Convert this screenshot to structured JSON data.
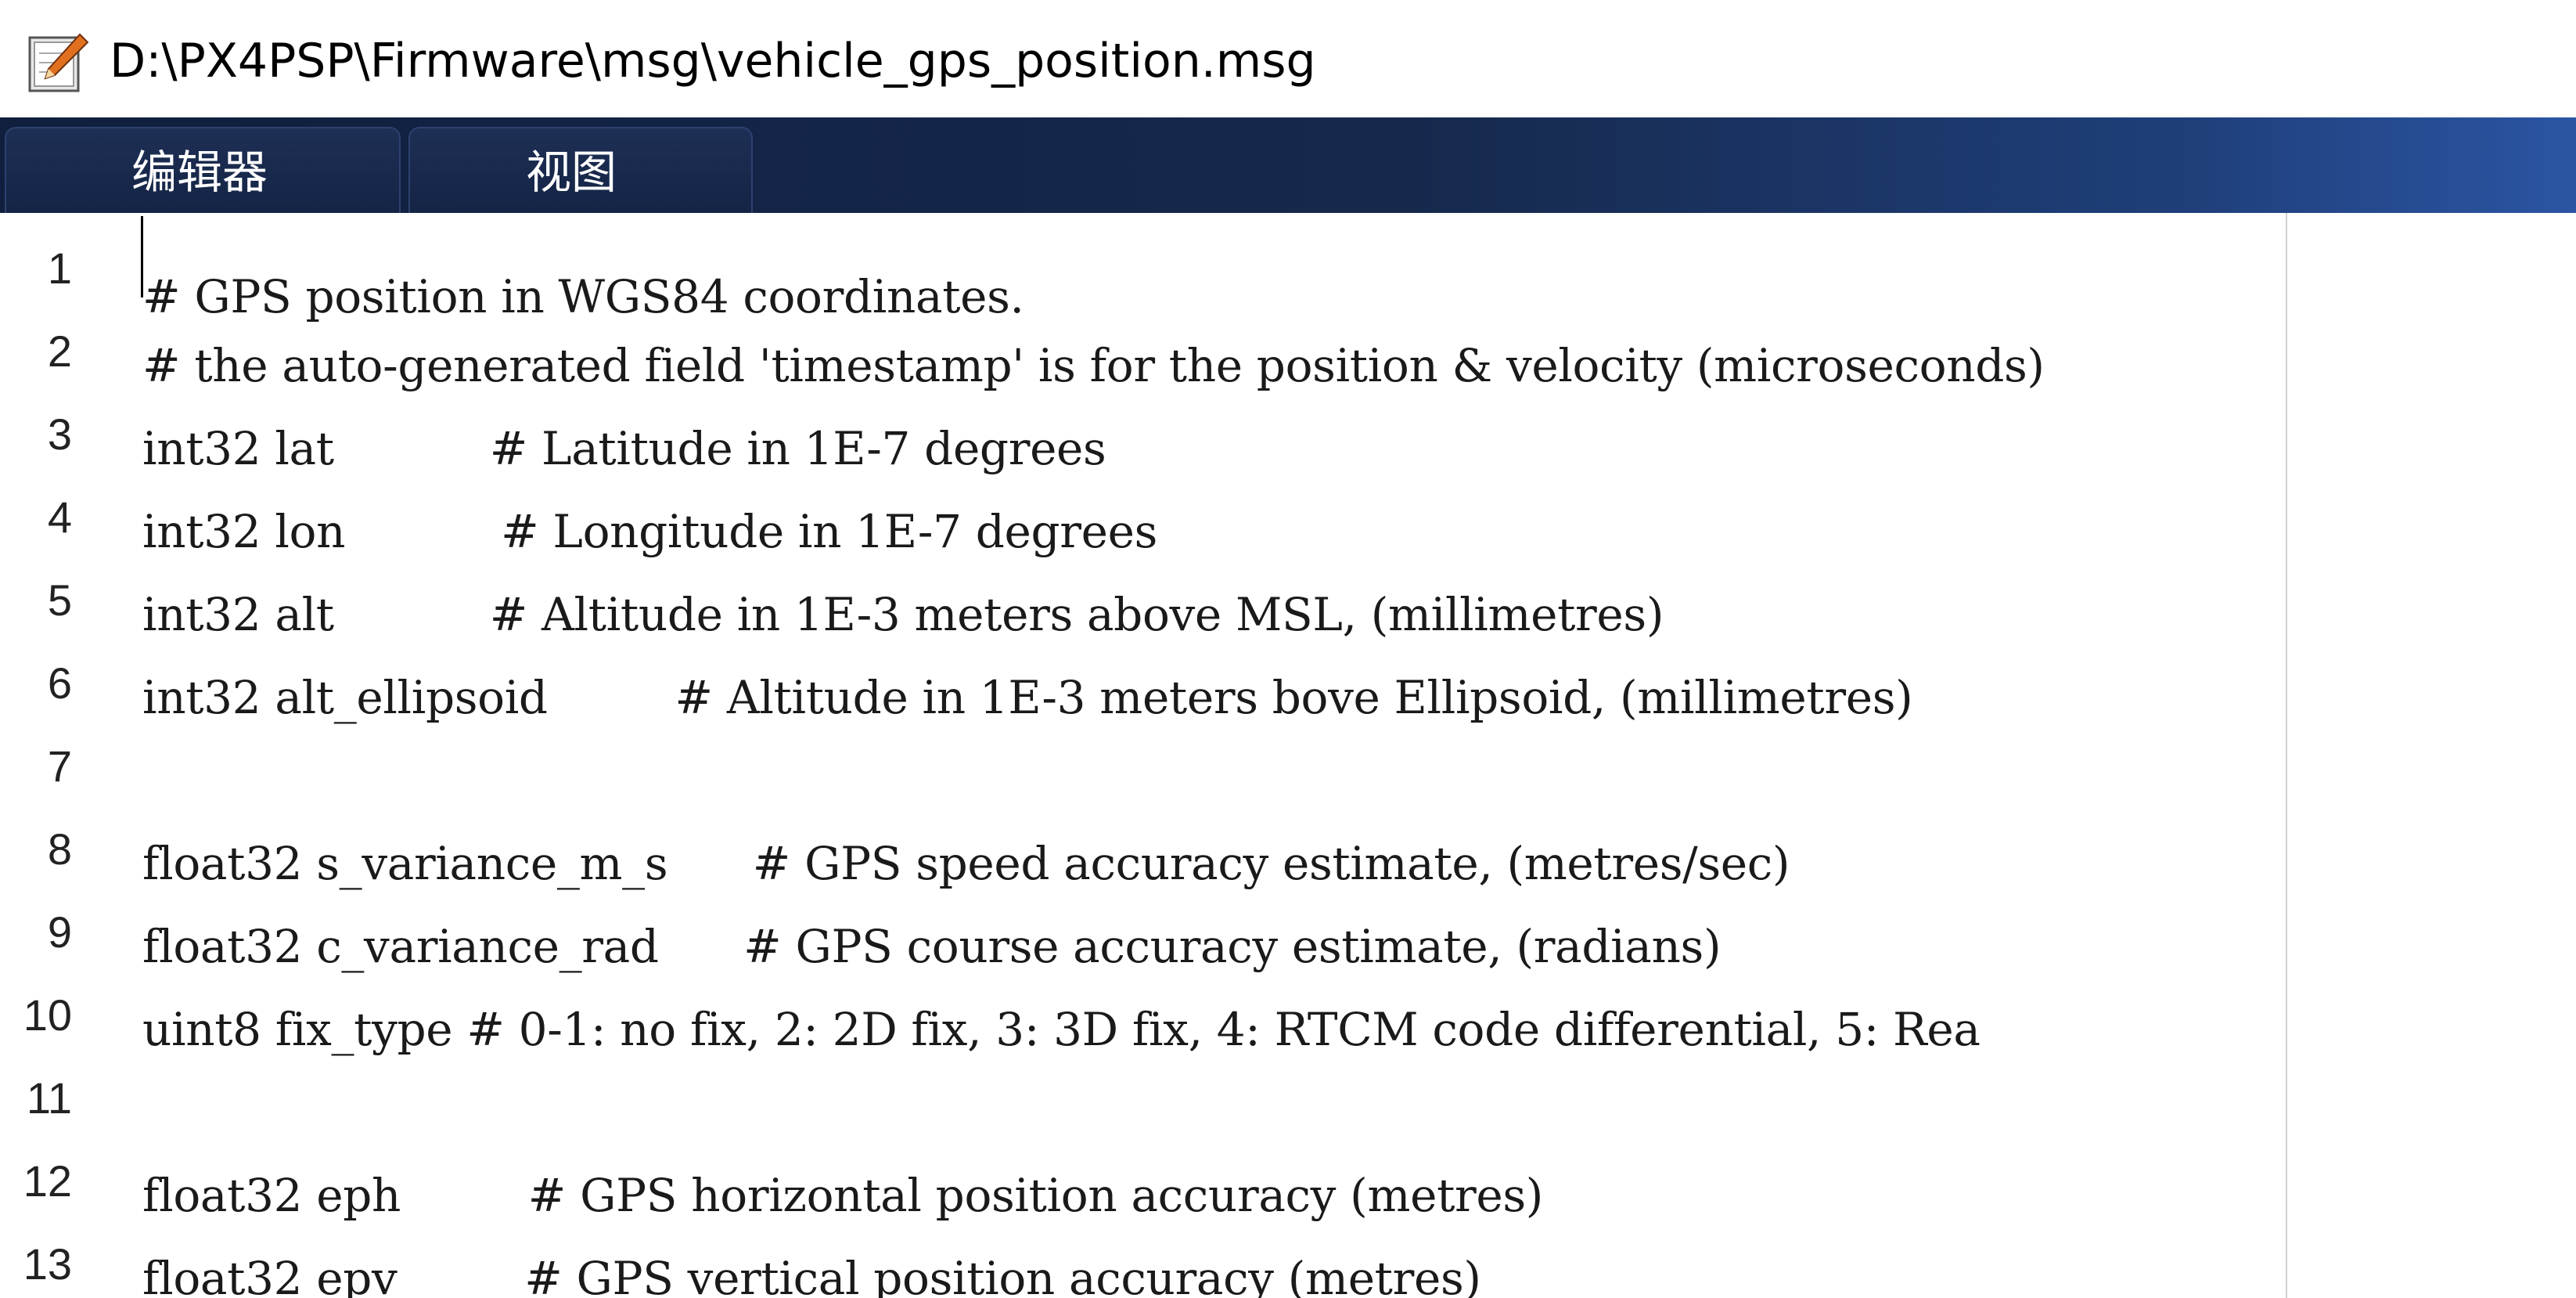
{
  "window": {
    "title": "D:\\PX4PSP\\Firmware\\msg\\vehicle_gps_position.msg",
    "icon": "edit-document-icon"
  },
  "tabs": [
    {
      "label": "编辑器"
    },
    {
      "label": "视图"
    }
  ],
  "editor": {
    "lines": [
      {
        "number": "1",
        "text": "# GPS position in WGS84 coordinates."
      },
      {
        "number": "2",
        "text": "# the auto-generated field 'timestamp' is for the position & velocity (microseconds)"
      },
      {
        "number": "3",
        "text": "int32 lat           # Latitude in 1E-7 degrees"
      },
      {
        "number": "4",
        "text": "int32 lon           # Longitude in 1E-7 degrees"
      },
      {
        "number": "5",
        "text": "int32 alt           # Altitude in 1E-3 meters above MSL, (millimetres)"
      },
      {
        "number": "6",
        "text": "int32 alt_ellipsoid         # Altitude in 1E-3 meters bove Ellipsoid, (millimetres)"
      },
      {
        "number": "7",
        "text": ""
      },
      {
        "number": "8",
        "text": "float32 s_variance_m_s      # GPS speed accuracy estimate, (metres/sec)"
      },
      {
        "number": "9",
        "text": "float32 c_variance_rad      # GPS course accuracy estimate, (radians)"
      },
      {
        "number": "10",
        "text": "uint8 fix_type # 0-1: no fix, 2: 2D fix, 3: 3D fix, 4: RTCM code differential, 5: Rea"
      },
      {
        "number": "11",
        "text": ""
      },
      {
        "number": "12",
        "text": "float32 eph         # GPS horizontal position accuracy (metres)"
      },
      {
        "number": "13",
        "text": "float32 epv         # GPS vertical position accuracy (metres)"
      }
    ]
  }
}
